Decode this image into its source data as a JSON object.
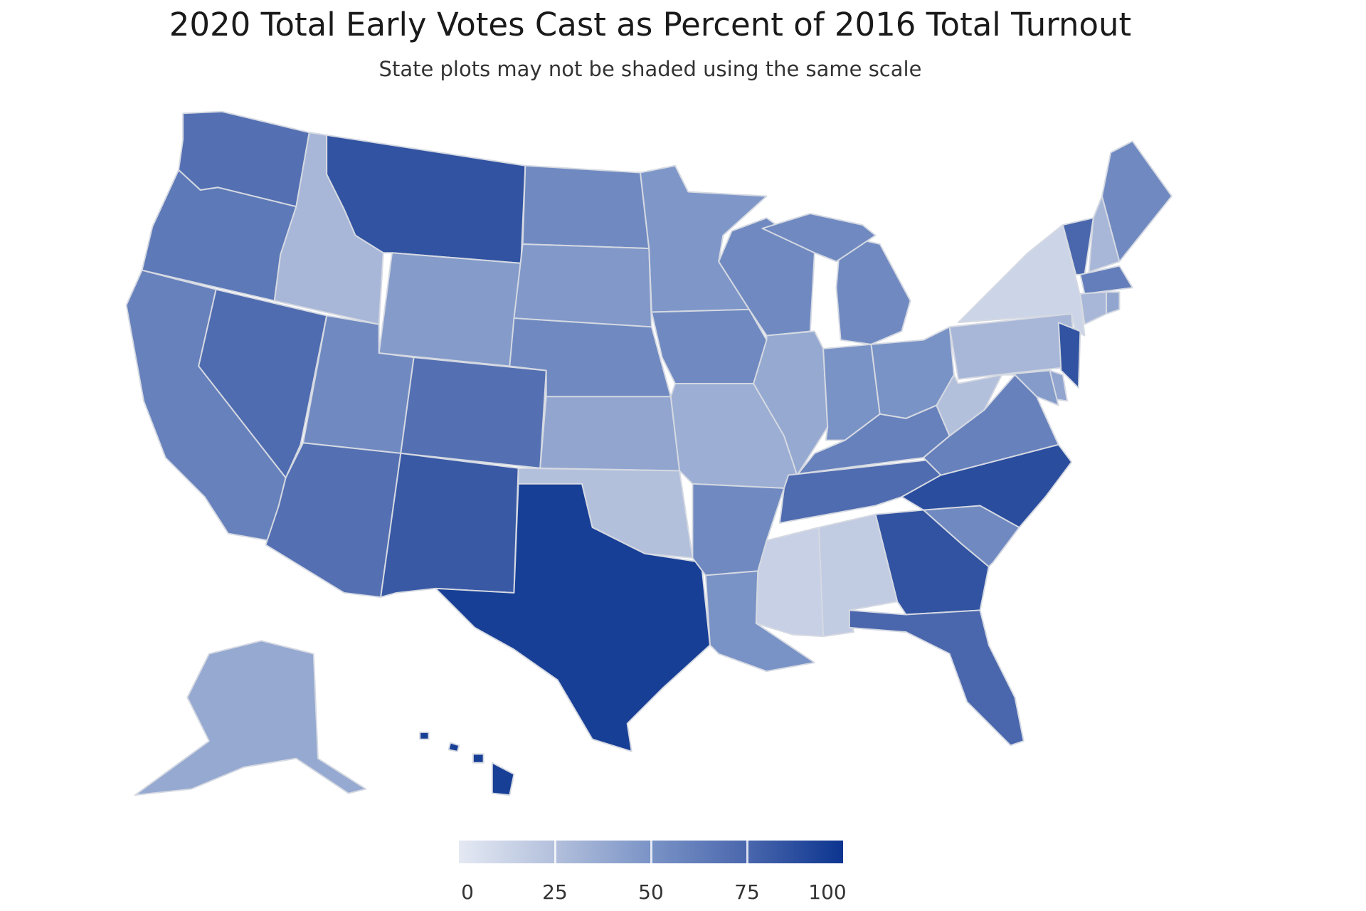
{
  "title": "2020 Total Early Votes Cast as Percent of 2016 Total Turnout",
  "subtitle": "State plots may not be shaded using the same scale",
  "chart_data": {
    "type": "choropleth",
    "title": "2020 Total Early Votes Cast as Percent of 2016 Total Turnout",
    "subtitle": "State plots may not be shaded using the same scale",
    "color_scale": {
      "range": [
        0,
        100
      ],
      "ticks": [
        0,
        25,
        50,
        75,
        100
      ],
      "stops": [
        "#e4e9f3",
        "#b3c0dc",
        "#7a93c6",
        "#4a67ad",
        "#0c3590"
      ]
    },
    "legend_placement": "bottom-center",
    "values": {
      "WA": 70,
      "OR": 65,
      "CA": 60,
      "NV": 72,
      "ID": 30,
      "MT": 85,
      "WY": 45,
      "UT": 55,
      "AZ": 70,
      "CO": 70,
      "NM": 82,
      "ND": 55,
      "SD": 47,
      "NE": 55,
      "KS": 40,
      "OK": 25,
      "TX": 95,
      "MN": 48,
      "IA": 55,
      "MO": 35,
      "AR": 55,
      "LA": 50,
      "WI": 55,
      "IL": 38,
      "MI": 55,
      "IN": 50,
      "OH": 50,
      "KY": 60,
      "TN": 72,
      "MS": 15,
      "AL": 18,
      "GA": 85,
      "FL": 75,
      "SC": 55,
      "NC": 88,
      "VA": 60,
      "WV": 25,
      "PA": 30,
      "NY": 12,
      "VT": 75,
      "NH": 30,
      "ME": 55,
      "MA": 62,
      "CT": 30,
      "RI": 40,
      "NJ": 85,
      "DE": 40,
      "MD": 45,
      "AK": 38,
      "HI": 95
    }
  }
}
